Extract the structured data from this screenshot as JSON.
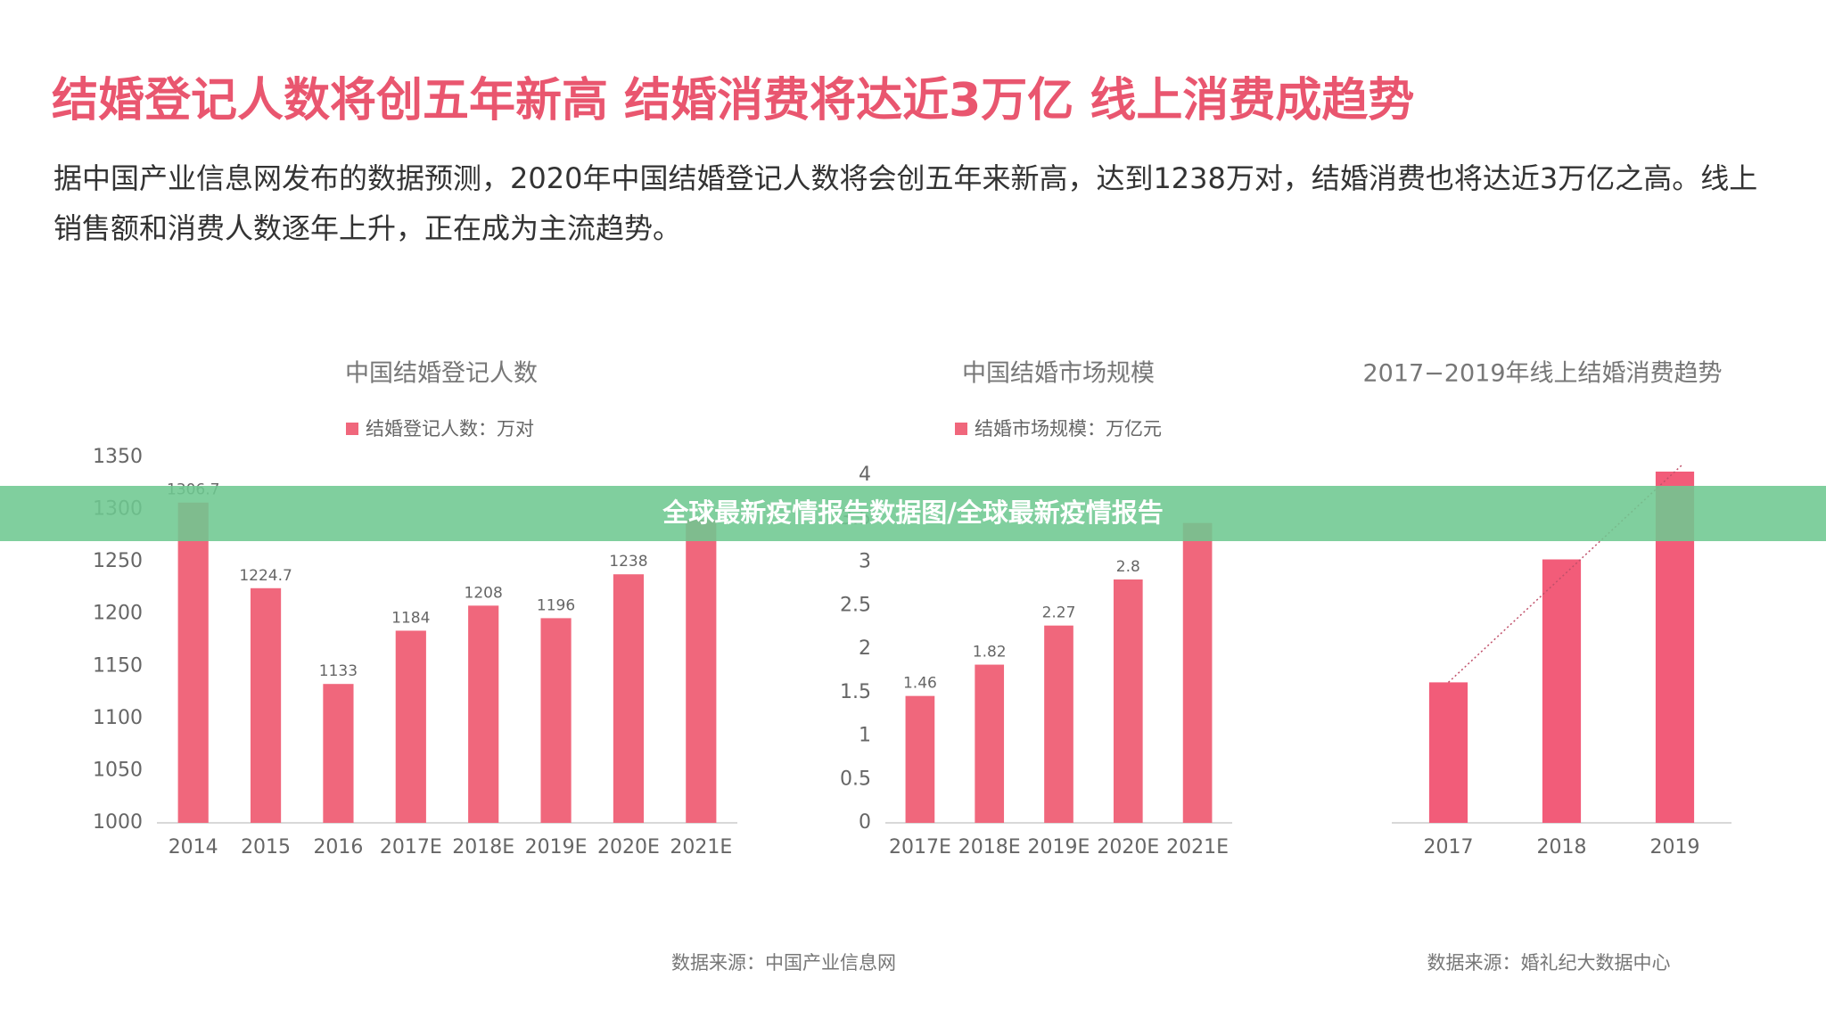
{
  "header": {
    "title": "结婚登记人数将创五年新高 结婚消费将达近3万亿 线上消费成趋势",
    "description": "据中国产业信息网发布的数据预测，2020年中国结婚登记人数将会创五年来新高，达到1238万对，结婚消费也将达近3万亿之高。线上销售额和消费人数逐年上升，正在成为主流趋势。"
  },
  "banner": "全球最新疫情报告数据图/全球最新疫情报告",
  "chart_data": [
    {
      "type": "bar",
      "title": "中国结婚登记人数",
      "categories": [
        "2014",
        "2015",
        "2016",
        "2017E",
        "2018E",
        "2019E",
        "2020E",
        "2021E"
      ],
      "series": [
        {
          "name": "结婚登记人数：万对",
          "color": "#f0677c",
          "values": [
            1306.7,
            1224.7,
            1133,
            1184,
            1208,
            1196,
            1238,
            1290
          ],
          "value_labels": [
            "1306.7",
            "1224.7",
            "1133",
            "1184",
            "1208",
            "1196",
            "1238",
            null
          ]
        }
      ],
      "ylim": [
        1000,
        1350
      ],
      "yticks": [
        1000,
        1050,
        1100,
        1150,
        1200,
        1250,
        1300,
        1350
      ]
    },
    {
      "type": "bar",
      "title": "中国结婚市场规模",
      "categories": [
        "2017E",
        "2018E",
        "2019E",
        "2020E",
        "2021E"
      ],
      "series": [
        {
          "name": "结婚市场规模：万亿元",
          "color": "#f0677c",
          "values": [
            1.46,
            1.82,
            2.27,
            2.8,
            3.45
          ],
          "value_labels": [
            "1.46",
            "1.82",
            "2.27",
            "2.8",
            null
          ]
        }
      ],
      "ylim": [
        0,
        4
      ],
      "yticks": [
        0,
        0.5,
        1,
        1.5,
        2,
        2.5,
        3,
        3.5,
        4
      ]
    },
    {
      "type": "bar",
      "title": "2017−2019年线上结婚消费趋势",
      "categories": [
        "2017",
        "2018",
        "2019"
      ],
      "color": "#f25c79",
      "values": [
        40,
        75,
        100
      ],
      "ylim": [
        0,
        100
      ],
      "trendline": true
    }
  ],
  "sources": [
    "数据来源：中国产业信息网",
    "数据来源：婚礼纪大数据中心"
  ]
}
